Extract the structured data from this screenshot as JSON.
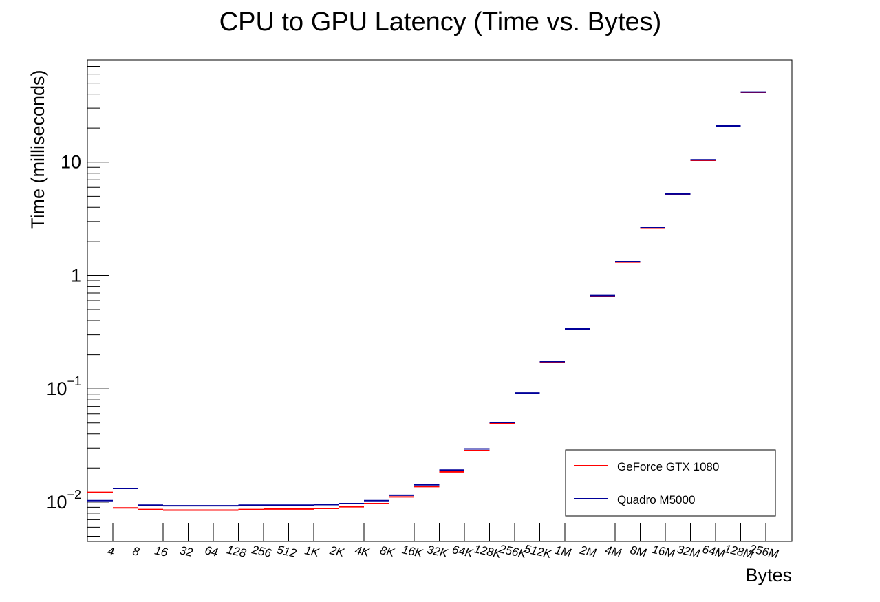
{
  "chart_data": {
    "type": "step",
    "title": "CPU to GPU Latency (Time vs. Bytes)",
    "xlabel": "Bytes",
    "ylabel": "Time (milliseconds)",
    "ylog": true,
    "ylim": [
      0.0045,
      80
    ],
    "categories": [
      "4",
      "8",
      "16",
      "32",
      "64",
      "128",
      "256",
      "512",
      "1K",
      "2K",
      "4K",
      "8K",
      "16K",
      "32K",
      "64K",
      "128K",
      "256K",
      "512K",
      "1M",
      "2M",
      "4M",
      "8M",
      "16M",
      "32M",
      "64M",
      "128M",
      "256M"
    ],
    "y_ticks": [
      {
        "value": 0.01,
        "base": "10",
        "exp": "−2"
      },
      {
        "value": 0.1,
        "base": "10",
        "exp": "−1"
      },
      {
        "value": 1,
        "base": "1",
        "exp": ""
      },
      {
        "value": 10,
        "base": "10",
        "exp": ""
      }
    ],
    "series": [
      {
        "name": "GeForce GTX 1080",
        "color": "#ff0000",
        "values": [
          0.0122,
          0.0089,
          0.0086,
          0.0085,
          0.0085,
          0.0085,
          0.0086,
          0.0087,
          0.0087,
          0.0088,
          0.0091,
          0.0097,
          0.0111,
          0.0137,
          0.0185,
          0.0285,
          0.0495,
          0.091,
          0.172,
          0.335,
          0.66,
          1.32,
          2.62,
          5.2,
          10.4,
          20.7,
          41.5
        ]
      },
      {
        "name": "Quadro M5000",
        "color": "#000099",
        "values": [
          0.0103,
          0.0132,
          0.0094,
          0.0093,
          0.0093,
          0.0093,
          0.0094,
          0.0094,
          0.0094,
          0.0095,
          0.0097,
          0.0103,
          0.0115,
          0.0142,
          0.0192,
          0.0295,
          0.0505,
          0.092,
          0.174,
          0.338,
          0.665,
          1.33,
          2.64,
          5.25,
          10.5,
          20.9,
          41.7
        ]
      }
    ],
    "legend": {
      "position": "bottom-right"
    }
  }
}
